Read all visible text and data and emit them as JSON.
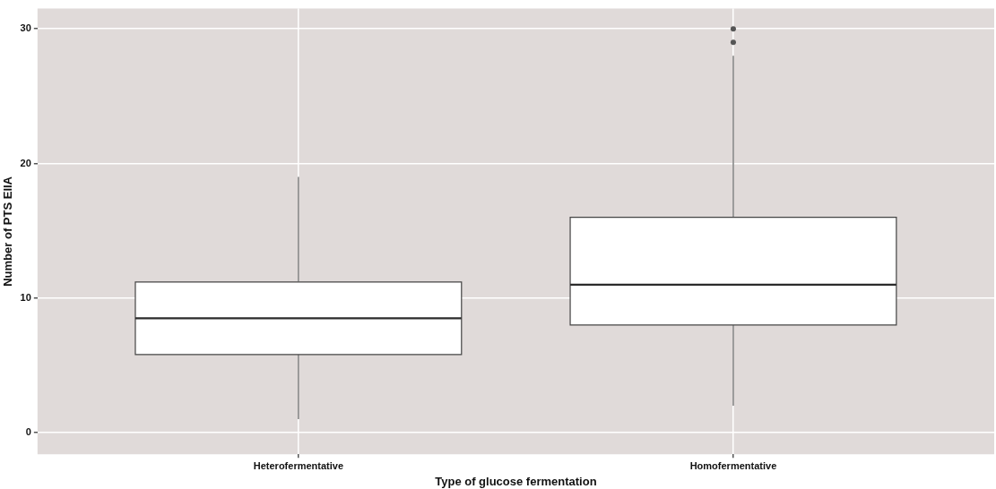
{
  "chart_data": {
    "type": "box",
    "xlabel": "Type of glucose fermentation",
    "ylabel": "Number of PTS EIIA",
    "categories": [
      "Heterofermentative",
      "Homofermentative"
    ],
    "color": "#ffffff",
    "boxes": [
      {
        "low": 1,
        "q1": 5.8,
        "median": 8.5,
        "q3": 11.2,
        "high": 19
      },
      {
        "low": 2,
        "q1": 8,
        "median": 11,
        "q3": 16,
        "high": 28,
        "outliers": [
          29,
          30
        ]
      }
    ],
    "ylim": [
      -1.6,
      31.5
    ],
    "yticks": [
      0,
      10,
      20,
      30
    ],
    "grid": true,
    "legend": false
  }
}
